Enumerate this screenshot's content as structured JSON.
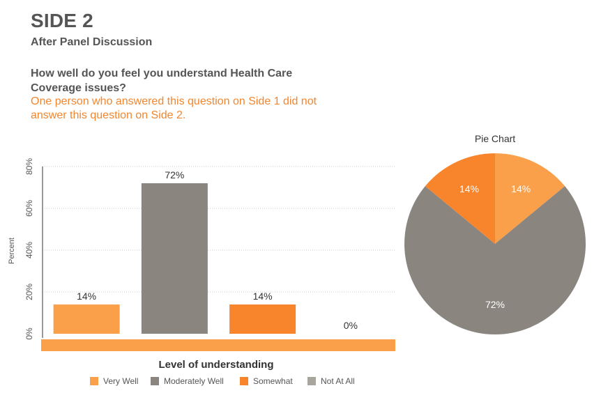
{
  "header": {
    "title": "SIDE 2",
    "subtitle": "After Panel Discussion",
    "question": "How well do you feel you understand Health Care Coverage issues?",
    "note": "One person who answered this question on Side 1 did not answer this question on Side 2."
  },
  "colors": {
    "very_well": "#fba04a",
    "moderately_well": "#8a857f",
    "somewhat": "#f8852b",
    "not_at_all": "#aaa49e",
    "axis_band": "#fba04a",
    "grid": "#cccccc",
    "text": "#555555"
  },
  "chart_data": [
    {
      "type": "bar",
      "categories": [
        "Very Well",
        "Moderately Well",
        "Somewhat",
        "Not At All"
      ],
      "values": [
        14,
        72,
        14,
        0
      ],
      "data_labels": [
        "14%",
        "72%",
        "14%",
        "0%"
      ],
      "title": "",
      "xlabel": "Level of understanding",
      "ylabel": "Percent",
      "ylim": [
        0,
        80
      ],
      "yticks": [
        0,
        20,
        40,
        60,
        80
      ],
      "ytick_labels": [
        "0%",
        "20%",
        "40%",
        "60%",
        "80%"
      ],
      "grid": true,
      "legend": {
        "placement": "bottom",
        "entries": [
          "Very Well",
          "Moderately Well",
          "Somewhat",
          "Not At All"
        ]
      }
    },
    {
      "type": "pie",
      "title": "Pie Chart",
      "categories": [
        "Very Well",
        "Moderately Well",
        "Somewhat",
        "Not At All"
      ],
      "values": [
        14,
        72,
        14,
        0
      ],
      "data_labels": [
        "14%",
        "72%",
        "14%",
        ""
      ]
    }
  ]
}
